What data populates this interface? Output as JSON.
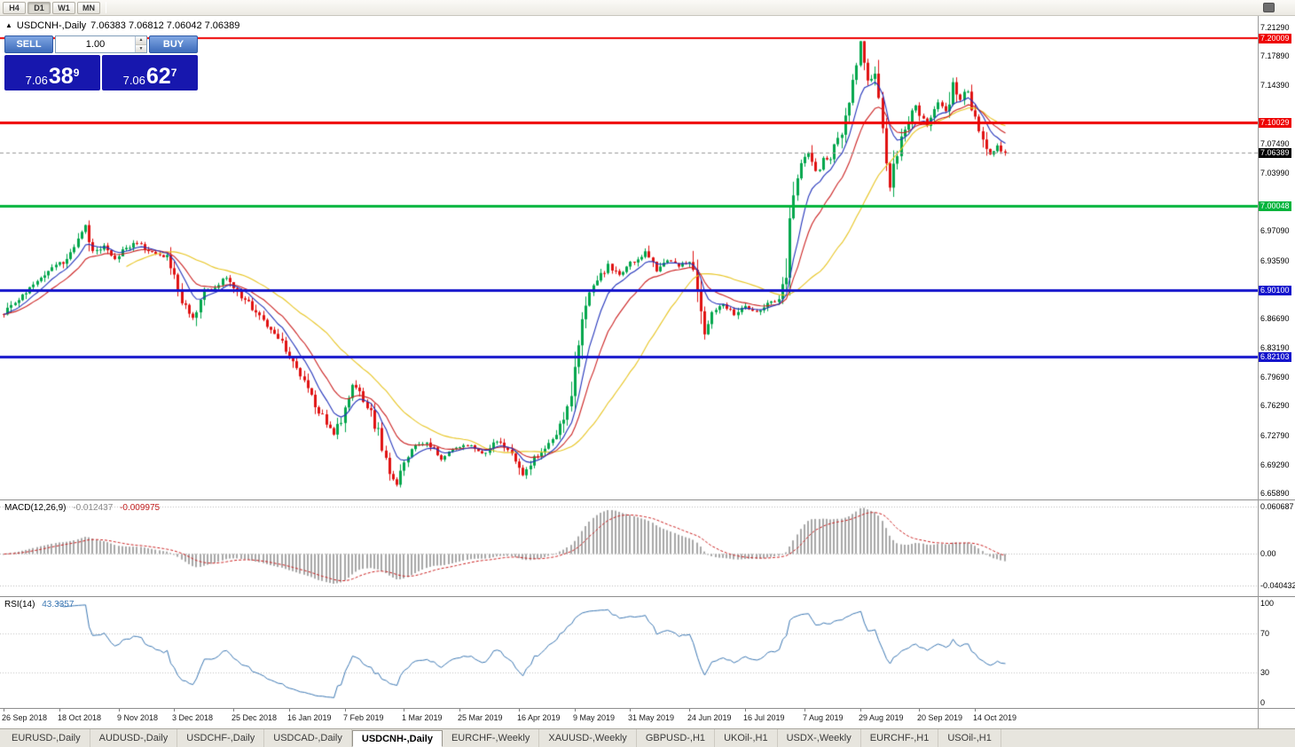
{
  "toolbar": {
    "timeframes": [
      {
        "label": "H4",
        "active": false
      },
      {
        "label": "D1",
        "active": true
      },
      {
        "label": "W1",
        "active": false
      },
      {
        "label": "MN",
        "active": false
      }
    ]
  },
  "chart": {
    "title": {
      "collapse_arrow": "▲",
      "symbol": "USDCNH-,Daily",
      "ohlc": "7.06383 7.06812 7.06042 7.06389"
    },
    "widget": {
      "sell_label": "SELL",
      "buy_label": "BUY",
      "volume": "1.00",
      "spin_up": "▲",
      "spin_down": "▼",
      "sell_price": {
        "small": "7.06",
        "big": "38",
        "sup": "9"
      },
      "buy_price": {
        "small": "7.06",
        "big": "62",
        "sup": "7"
      }
    }
  },
  "chart_data": {
    "type": "candlestick",
    "symbol": "USDCNH",
    "period": "Daily",
    "candle_count": 271,
    "close_anchors": [
      [
        0,
        6.872
      ],
      [
        4,
        6.89
      ],
      [
        8,
        6.908
      ],
      [
        12,
        6.923
      ],
      [
        16,
        6.934
      ],
      [
        19,
        6.95
      ],
      [
        22,
        6.975
      ],
      [
        24,
        6.944
      ],
      [
        27,
        6.955
      ],
      [
        30,
        6.938
      ],
      [
        33,
        6.95
      ],
      [
        36,
        6.958
      ],
      [
        40,
        6.944
      ],
      [
        44,
        6.94
      ],
      [
        48,
        6.885
      ],
      [
        51,
        6.868
      ],
      [
        54,
        6.9
      ],
      [
        57,
        6.905
      ],
      [
        60,
        6.915
      ],
      [
        63,
        6.898
      ],
      [
        66,
        6.885
      ],
      [
        70,
        6.862
      ],
      [
        74,
        6.845
      ],
      [
        78,
        6.815
      ],
      [
        82,
        6.78
      ],
      [
        86,
        6.75
      ],
      [
        89,
        6.73
      ],
      [
        92,
        6.755
      ],
      [
        94,
        6.79
      ],
      [
        98,
        6.765
      ],
      [
        101,
        6.73
      ],
      [
        104,
        6.685
      ],
      [
        106,
        6.67
      ],
      [
        108,
        6.695
      ],
      [
        111,
        6.715
      ],
      [
        114,
        6.72
      ],
      [
        118,
        6.7
      ],
      [
        121,
        6.71
      ],
      [
        125,
        6.716
      ],
      [
        129,
        6.705
      ],
      [
        133,
        6.72
      ],
      [
        137,
        6.71
      ],
      [
        140,
        6.682
      ],
      [
        143,
        6.7
      ],
      [
        146,
        6.715
      ],
      [
        149,
        6.725
      ],
      [
        152,
        6.76
      ],
      [
        154,
        6.81
      ],
      [
        156,
        6.86
      ],
      [
        158,
        6.895
      ],
      [
        160,
        6.91
      ],
      [
        163,
        6.93
      ],
      [
        166,
        6.92
      ],
      [
        170,
        6.935
      ],
      [
        173,
        6.945
      ],
      [
        176,
        6.925
      ],
      [
        179,
        6.935
      ],
      [
        182,
        6.93
      ],
      [
        185,
        6.935
      ],
      [
        187,
        6.9
      ],
      [
        189,
        6.852
      ],
      [
        191,
        6.875
      ],
      [
        194,
        6.885
      ],
      [
        197,
        6.87
      ],
      [
        200,
        6.88
      ],
      [
        203,
        6.875
      ],
      [
        206,
        6.885
      ],
      [
        209,
        6.89
      ],
      [
        211,
        6.925
      ],
      [
        213,
        7.02
      ],
      [
        215,
        7.05
      ],
      [
        217,
        7.065
      ],
      [
        219,
        7.04
      ],
      [
        221,
        7.055
      ],
      [
        223,
        7.06
      ],
      [
        226,
        7.09
      ],
      [
        228,
        7.13
      ],
      [
        231,
        7.196
      ],
      [
        233,
        7.15
      ],
      [
        235,
        7.16
      ],
      [
        237,
        7.09
      ],
      [
        239,
        7.025
      ],
      [
        242,
        7.08
      ],
      [
        244,
        7.1
      ],
      [
        246,
        7.12
      ],
      [
        249,
        7.095
      ],
      [
        252,
        7.125
      ],
      [
        254,
        7.11
      ],
      [
        256,
        7.15
      ],
      [
        258,
        7.125
      ],
      [
        260,
        7.14
      ],
      [
        262,
        7.1
      ],
      [
        264,
        7.085
      ],
      [
        266,
        7.062
      ],
      [
        268,
        7.072
      ],
      [
        270,
        7.0639
      ]
    ],
    "price_axis": {
      "ticks": [
        "7.21290",
        "7.17890",
        "7.14390",
        "7.07490",
        "7.03990",
        "6.97090",
        "6.93590",
        "6.86690",
        "6.83190",
        "6.79690",
        "6.76290",
        "6.72790",
        "6.69290",
        "6.65890"
      ]
    },
    "levels": [
      {
        "label": "7.20009",
        "price": 7.20009,
        "color": "#EE0000",
        "width": 2
      },
      {
        "label": "7.10029",
        "price": 7.10029,
        "color": "#EE0000",
        "width": 3
      },
      {
        "label": "7.00048",
        "price": 7.00048,
        "color": "#00B43C",
        "width": 3
      },
      {
        "label": "6.90100",
        "price": 6.901,
        "color": "#1414CC",
        "width": 3
      },
      {
        "label": "6.82103",
        "price": 6.82103,
        "color": "#1414CC",
        "width": 3
      }
    ],
    "current_price": {
      "label": "7.06389",
      "price": 7.06389,
      "tag_color": "#000000"
    },
    "moving_averages": [
      {
        "period": 34,
        "type": "sma",
        "color": "#E8C521"
      },
      {
        "period": 16,
        "type": "ema",
        "color": "#CC2222"
      },
      {
        "period": 8,
        "type": "ema",
        "color": "#2233BB"
      }
    ],
    "macd": {
      "name": "MACD(12,26,9)",
      "main_value": "-0.012437",
      "signal_value": "-0.009975",
      "axis_labels": [
        "0.060687",
        "0.00",
        "-0.040432"
      ],
      "axis_max": 0.060687,
      "axis_min": -0.040432,
      "hist_color": "#A8A8A8",
      "signal_color": "#CC2020"
    },
    "rsi": {
      "name": "RSI(14)",
      "value": "43.3357",
      "axis_labels": [
        "100",
        "70",
        "30",
        "0"
      ],
      "levels": [
        70,
        30
      ],
      "line_color": "#3C78B4"
    },
    "dates": [
      {
        "i": 0,
        "label": "26 Sep 2018"
      },
      {
        "i": 15,
        "label": "18 Oct 2018"
      },
      {
        "i": 31,
        "label": "9 Nov 2018"
      },
      {
        "i": 46,
        "label": "3 Dec 2018"
      },
      {
        "i": 62,
        "label": "25 Dec 2018"
      },
      {
        "i": 77,
        "label": "16 Jan 2019"
      },
      {
        "i": 92,
        "label": "7 Feb 2019"
      },
      {
        "i": 108,
        "label": "1 Mar 2019"
      },
      {
        "i": 123,
        "label": "25 Mar 2019"
      },
      {
        "i": 139,
        "label": "16 Apr 2019"
      },
      {
        "i": 154,
        "label": "9 May 2019"
      },
      {
        "i": 169,
        "label": "31 May 2019"
      },
      {
        "i": 185,
        "label": "24 Jun 2019"
      },
      {
        "i": 200,
        "label": "16 Jul 2019"
      },
      {
        "i": 216,
        "label": "7 Aug 2019"
      },
      {
        "i": 231,
        "label": "29 Aug 2019"
      },
      {
        "i": 247,
        "label": "20 Sep 2019"
      },
      {
        "i": 262,
        "label": "14 Oct 2019"
      }
    ],
    "candle_up_color": "#00A64C",
    "candle_down_color": "#E01212"
  },
  "tabs": [
    {
      "label": "EURUSD-,Daily",
      "active": false
    },
    {
      "label": "AUDUSD-,Daily",
      "active": false
    },
    {
      "label": "USDCHF-,Daily",
      "active": false
    },
    {
      "label": "USDCAD-,Daily",
      "active": false
    },
    {
      "label": "USDCNH-,Daily",
      "active": true
    },
    {
      "label": "EURCHF-,Weekly",
      "active": false
    },
    {
      "label": "XAUUSD-,Weekly",
      "active": false
    },
    {
      "label": "GBPUSD-,H1",
      "active": false
    },
    {
      "label": "UKOil-,H1",
      "active": false
    },
    {
      "label": "USDX-,Weekly",
      "active": false
    },
    {
      "label": "EURCHF-,H1",
      "active": false
    },
    {
      "label": "USOil-,H1",
      "active": false
    }
  ]
}
